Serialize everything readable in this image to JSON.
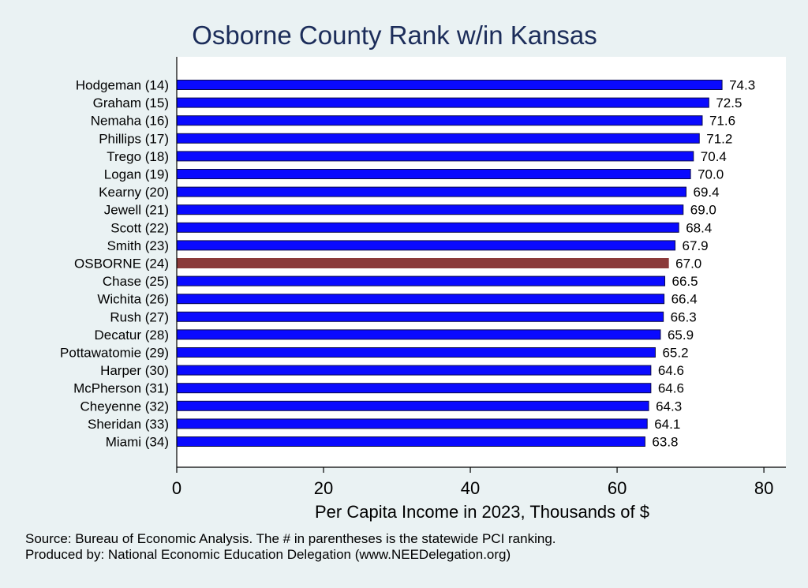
{
  "chart_data": {
    "type": "bar",
    "orientation": "horizontal",
    "title": "Osborne County Rank w/in Kansas",
    "xlabel": "Per Capita Income in 2023, Thousands of $",
    "ylabel": "",
    "xlim": [
      0,
      83
    ],
    "xticks": [
      0,
      20,
      40,
      60,
      80
    ],
    "grid": false,
    "categories": [
      "Hodgeman (14)",
      "Graham (15)",
      "Nemaha (16)",
      "Phillips (17)",
      "Trego (18)",
      "Logan (19)",
      "Kearny (20)",
      "Jewell (21)",
      "Scott (22)",
      "Smith (23)",
      "OSBORNE (24)",
      "Chase (25)",
      "Wichita (26)",
      "Rush (27)",
      "Decatur (28)",
      "Pottawatomie (29)",
      "Harper (30)",
      "McPherson (31)",
      "Cheyenne (32)",
      "Sheridan (33)",
      "Miami (34)"
    ],
    "values": [
      74.3,
      72.5,
      71.6,
      71.2,
      70.4,
      70.0,
      69.4,
      69.0,
      68.4,
      67.9,
      67.0,
      66.5,
      66.4,
      66.3,
      65.9,
      65.2,
      64.6,
      64.6,
      64.3,
      64.1,
      63.8
    ],
    "value_labels": [
      "74.3",
      "72.5",
      "71.6",
      "71.2",
      "70.4",
      "70.0",
      "69.4",
      "69.0",
      "68.4",
      "67.9",
      "67.0",
      "66.5",
      "66.4",
      "66.3",
      "65.9",
      "65.2",
      "64.6",
      "64.6",
      "64.3",
      "64.1",
      "63.8"
    ],
    "highlight_category": "OSBORNE (24)",
    "colors": {
      "bar": "#0a0aff",
      "bar_outline": "#0a0a4a",
      "highlight": "#8b3a3a",
      "plot_bg": "#ffffff",
      "page_bg": "#eaf2f3",
      "title": "#1c2d5a"
    }
  },
  "notes": {
    "source": "Source: Bureau of Economic Analysis. The # in parentheses is the statewide PCI ranking.",
    "producer": "Produced by: National Economic Education Delegation (www.NEEDelegation.org)"
  }
}
